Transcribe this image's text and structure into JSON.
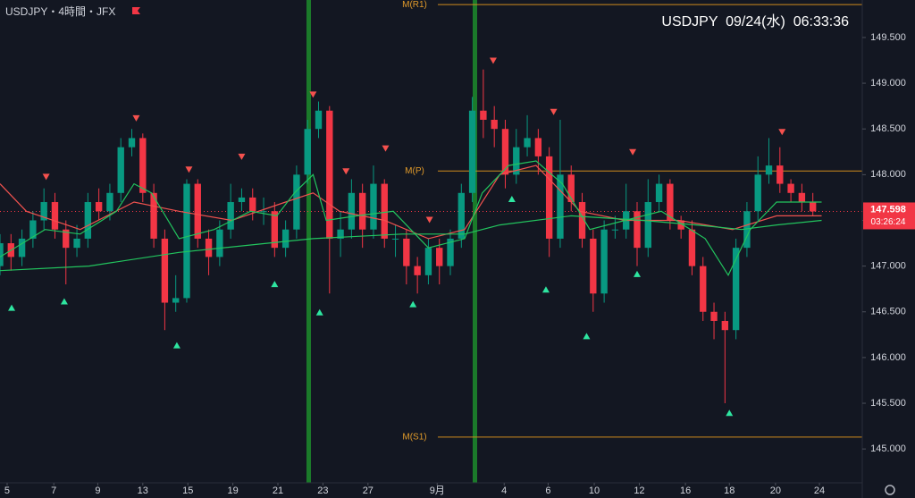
{
  "header": {
    "symbol": "USDJPY・4時間・JFX",
    "clock": "USDJPY  09/24(水)  06:33:36"
  },
  "chart_data": {
    "type": "candlestick",
    "xlim": [
      0,
      78.5
    ],
    "ylim": [
      144.63,
      149.91
    ],
    "yticks": [
      {
        "value": 145.0,
        "label": "145.000"
      },
      {
        "value": 145.5,
        "label": "145.500"
      },
      {
        "value": 146.0,
        "label": "146.000"
      },
      {
        "value": 146.5,
        "label": "146.500"
      },
      {
        "value": 147.0,
        "label": "147.000"
      },
      {
        "value": 147.5,
        "label": "147.500"
      },
      {
        "value": 148.0,
        "label": "148.000"
      },
      {
        "value": 148.5,
        "label": "148.500"
      },
      {
        "value": 149.0,
        "label": "149.000"
      },
      {
        "value": 149.5,
        "label": "149.500"
      }
    ],
    "xticks": [
      {
        "value": 0.65,
        "label": "5"
      },
      {
        "value": 4.9,
        "label": "7"
      },
      {
        "value": 8.9,
        "label": "9"
      },
      {
        "value": 13.0,
        "label": "13"
      },
      {
        "value": 17.1,
        "label": "15"
      },
      {
        "value": 21.2,
        "label": "19"
      },
      {
        "value": 25.3,
        "label": "21"
      },
      {
        "value": 29.4,
        "label": "23"
      },
      {
        "value": 33.5,
        "label": "27"
      },
      {
        "value": 39.8,
        "label": "9月"
      },
      {
        "value": 45.9,
        "label": "4"
      },
      {
        "value": 49.9,
        "label": "6"
      },
      {
        "value": 54.1,
        "label": "10"
      },
      {
        "value": 58.2,
        "label": "12"
      },
      {
        "value": 62.4,
        "label": "16"
      },
      {
        "value": 66.4,
        "label": "18"
      },
      {
        "value": 70.6,
        "label": "20"
      },
      {
        "value": 74.6,
        "label": "24"
      }
    ],
    "up_color": "#089981",
    "down_color": "#f23645",
    "candles": {
      "open": [
        147.0,
        147.25,
        147.1,
        147.3,
        147.5,
        147.7,
        147.4,
        147.2,
        147.3,
        147.7,
        147.6,
        147.8,
        148.3,
        148.4,
        147.8,
        147.3,
        146.6,
        146.65,
        147.9,
        147.3,
        147.1,
        147.4,
        147.7,
        147.75,
        147.6,
        147.6,
        147.2,
        147.4,
        148.0,
        148.5,
        148.7,
        147.3,
        147.4,
        147.8,
        147.4,
        147.9,
        147.3,
        147.3,
        147.0,
        146.9,
        147.2,
        147.0,
        147.3,
        147.8,
        148.7,
        148.6,
        148.5,
        148.0,
        148.3,
        148.4,
        148.2,
        147.3,
        148.0,
        147.7,
        147.3,
        146.7,
        147.4,
        147.4,
        147.6,
        147.2,
        147.7,
        147.9,
        147.5,
        147.4,
        147.0,
        146.5,
        146.4,
        146.3,
        147.2,
        147.6,
        148.0,
        148.1,
        147.9,
        147.8,
        147.7
      ],
      "high": [
        147.35,
        147.35,
        147.4,
        147.6,
        147.85,
        147.8,
        147.5,
        147.45,
        147.8,
        147.85,
        147.9,
        148.4,
        148.5,
        148.45,
        147.9,
        147.4,
        146.9,
        147.95,
        147.95,
        147.4,
        147.5,
        147.9,
        147.85,
        147.85,
        147.75,
        147.7,
        147.5,
        148.1,
        148.6,
        148.8,
        148.75,
        147.6,
        147.95,
        147.9,
        148.1,
        147.95,
        147.45,
        147.4,
        147.1,
        147.3,
        147.3,
        147.4,
        147.9,
        148.85,
        149.15,
        148.75,
        148.6,
        148.5,
        148.65,
        148.5,
        148.3,
        148.6,
        148.1,
        147.8,
        147.4,
        147.5,
        147.55,
        147.9,
        147.7,
        147.95,
        148.0,
        147.95,
        147.55,
        147.5,
        147.1,
        146.6,
        146.5,
        147.3,
        147.7,
        148.2,
        148.4,
        148.3,
        147.95,
        147.9,
        147.8
      ],
      "low": [
        146.9,
        146.95,
        147.0,
        147.2,
        147.4,
        147.3,
        146.8,
        147.1,
        147.2,
        147.5,
        147.5,
        147.7,
        148.2,
        147.7,
        147.2,
        146.3,
        146.5,
        146.6,
        147.2,
        146.9,
        147.0,
        147.3,
        147.6,
        147.5,
        147.45,
        147.1,
        147.1,
        147.3,
        147.9,
        148.4,
        146.7,
        147.1,
        147.3,
        147.2,
        147.3,
        147.2,
        147.1,
        146.8,
        146.7,
        146.8,
        146.8,
        146.9,
        147.2,
        147.7,
        148.4,
        148.3,
        147.85,
        147.9,
        148.2,
        148.0,
        147.1,
        147.2,
        147.6,
        147.2,
        146.5,
        146.6,
        147.3,
        147.3,
        147.0,
        147.1,
        147.6,
        147.4,
        147.3,
        146.9,
        146.4,
        146.2,
        145.5,
        146.2,
        147.1,
        147.5,
        147.9,
        147.8,
        147.7,
        147.6,
        147.55
      ],
      "close": [
        147.25,
        147.1,
        147.3,
        147.5,
        147.7,
        147.4,
        147.2,
        147.3,
        147.7,
        147.6,
        147.8,
        148.3,
        148.4,
        147.8,
        147.3,
        146.6,
        146.65,
        147.9,
        147.3,
        147.1,
        147.4,
        147.7,
        147.75,
        147.6,
        147.6,
        147.2,
        147.4,
        148.0,
        148.5,
        148.7,
        147.3,
        147.4,
        147.8,
        147.4,
        147.9,
        147.3,
        147.3,
        147.0,
        146.9,
        147.2,
        147.0,
        147.3,
        147.8,
        148.7,
        148.6,
        148.5,
        148.0,
        148.3,
        148.4,
        148.2,
        147.3,
        148.0,
        147.7,
        147.3,
        146.7,
        147.4,
        147.4,
        147.6,
        147.2,
        147.7,
        147.9,
        147.5,
        147.4,
        147.0,
        146.5,
        146.4,
        146.3,
        147.2,
        147.6,
        148.0,
        148.1,
        147.9,
        147.8,
        147.7,
        147.598
      ]
    },
    "series": [
      {
        "color": "#f0524f",
        "x": [
          0,
          2.4,
          7.3,
          12.2,
          16.3,
          21.1,
          26.0,
          28.5,
          30.9,
          35.0,
          39.0,
          42.3,
          45.5,
          48.8,
          52.8,
          56.9,
          61.8,
          66.7,
          70.7,
          74.8
        ],
        "values": [
          147.9,
          147.6,
          147.4,
          147.7,
          147.6,
          147.5,
          147.7,
          147.8,
          147.6,
          147.5,
          147.3,
          147.4,
          148.0,
          148.1,
          147.6,
          147.5,
          147.5,
          147.4,
          147.55,
          147.55
        ]
      },
      {
        "color": "#22c55e",
        "x": [
          0,
          4.1,
          7.3,
          10.6,
          12.2,
          13.8,
          16.3,
          19.5,
          22.8,
          25.2,
          26.8,
          28.5,
          29.7,
          32.5,
          35.8,
          39.0,
          42.3,
          43.9,
          46.3,
          48.8,
          51.2,
          53.7,
          56.9,
          60.2,
          64.2,
          66.3,
          68.3,
          70.7,
          74.8
        ],
        "values": [
          147.1,
          147.4,
          147.35,
          147.6,
          147.9,
          147.8,
          147.3,
          147.4,
          147.6,
          147.55,
          147.8,
          148.0,
          147.5,
          147.55,
          147.6,
          147.2,
          147.3,
          147.8,
          148.1,
          148.15,
          147.9,
          147.4,
          147.5,
          147.6,
          147.3,
          146.9,
          147.4,
          147.7,
          147.7
        ]
      },
      {
        "color": "#22c55e",
        "x": [
          0,
          8.1,
          16.3,
          24.4,
          28.5,
          36.6,
          42.3,
          45.5,
          52.0,
          58.5,
          63.4,
          67.5,
          70.7,
          74.8
        ],
        "values": [
          146.95,
          147.0,
          147.15,
          147.25,
          147.3,
          147.35,
          147.35,
          147.45,
          147.55,
          147.5,
          147.45,
          147.4,
          147.45,
          147.5
        ]
      }
    ],
    "levels": [
      {
        "label": "M(R1)",
        "value": 149.86
      },
      {
        "label": "M(P)",
        "value": 148.04
      },
      {
        "label": "M(S1)",
        "value": 145.13
      }
    ],
    "signals_up": {
      "x": [
        1.06,
        5.85,
        16.1,
        25.0,
        29.1,
        37.6,
        46.6,
        49.7,
        53.4,
        58.0,
        66.4
      ],
      "values": [
        146.54,
        146.61,
        146.13,
        146.8,
        146.49,
        146.58,
        147.73,
        146.74,
        146.23,
        146.91,
        145.39
      ]
    },
    "signals_down": {
      "x": [
        4.2,
        12.4,
        17.2,
        22.0,
        28.5,
        31.5,
        35.1,
        39.1,
        44.9,
        50.4,
        57.6,
        71.2
      ],
      "values": [
        147.98,
        148.62,
        148.06,
        148.2,
        148.88,
        148.04,
        148.29,
        147.51,
        149.25,
        148.69,
        148.25,
        148.47
      ]
    },
    "last_price": 147.598,
    "countdown": "03:26:24"
  }
}
